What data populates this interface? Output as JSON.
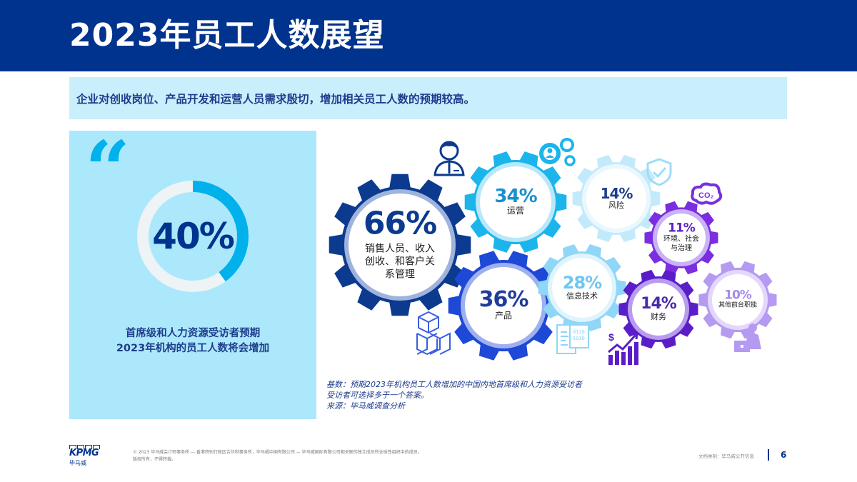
{
  "header": {
    "title": "2023年员工人数展望"
  },
  "subtitle": "企业对创收岗位、产品开发和运营人员需求殷切，增加相关员工人数的预期较高。",
  "quote_panel": {
    "quote_mark": "“",
    "ring_value": "40%",
    "ring_percent": 40,
    "caption_line1": "首席级和人力资源受访者预期",
    "caption_line2": "2023年机构的员工人数将会增加",
    "colors": {
      "ring_fill": "#00b1eb",
      "ring_track": "#eef3f6",
      "panel_bg": "#ace8fb"
    }
  },
  "chart_data": {
    "type": "bar",
    "title": "2023年员工人数展望",
    "subtitle": "首席级和人力资源受访者预期增加员工人数的职能",
    "categories": [
      "销售人员、收入创收、和客户关系管理",
      "产品",
      "运营",
      "信息技术",
      "风险",
      "财务",
      "环境、社会与治理",
      "其他前台职能"
    ],
    "values": [
      66,
      36,
      34,
      28,
      14,
      14,
      11,
      10
    ],
    "unit": "%",
    "headline_stat": {
      "label": "首席级和人力资源受访者预期2023年机构的员工人数将会增加",
      "value": 40
    }
  },
  "gears": [
    {
      "pct": "66%",
      "label": "销售人员、收入创收、和客户关系管理",
      "line1": "销售人员、收入",
      "line2": "创收、和客户关",
      "line3": "系管理",
      "color": "#0c3a8f",
      "icon": "business-person-icon"
    },
    {
      "pct": "34%",
      "label": "运营",
      "color": "#1bb5ec",
      "icon": "gear-person-icon"
    },
    {
      "pct": "36%",
      "label": "产品",
      "color": "#1e49d6",
      "icon": "cubes-icon"
    },
    {
      "pct": "28%",
      "label": "信息技术",
      "color": "#8fd6f7",
      "icon": "code-document-icon"
    },
    {
      "pct": "14%",
      "label": "风险",
      "color": "#c3eafb",
      "icon": "shield-check-icon"
    },
    {
      "pct": "11%",
      "label": "环境、社会与治理",
      "line1": "环境、社会",
      "line2": "与治理",
      "color": "#7a2ee0",
      "icon": "co2-cloud-icon"
    },
    {
      "pct": "14%",
      "label": "财务",
      "color": "#5a1ec8",
      "icon": "dollar-growth-icon"
    },
    {
      "pct": "10%",
      "label": "其他前台职能",
      "color": "#b59af2",
      "icon": "person-laptop-icon"
    }
  ],
  "notes": {
    "line1": "基数：预期2023年机构员工人数增加的中国内地首席级和人力资源受访者",
    "line2": "受访者可选择多于一个答案。",
    "line3": "来源：毕马威调查分析"
  },
  "footer": {
    "logo_text": "KPMG",
    "logo_cn": "毕马威",
    "copyright_line1": "© 2023 毕马威会计师事务所 — 香港特别行政区合伙制事务所，毕马威中国有限公司 — 毕马威国际有限公司相关联的独立成员所全球性组织中的成员。",
    "copyright_line2": "版权所有，不得转载。",
    "classification": "文档类别：毕马威公开信息",
    "page_number": "6"
  }
}
